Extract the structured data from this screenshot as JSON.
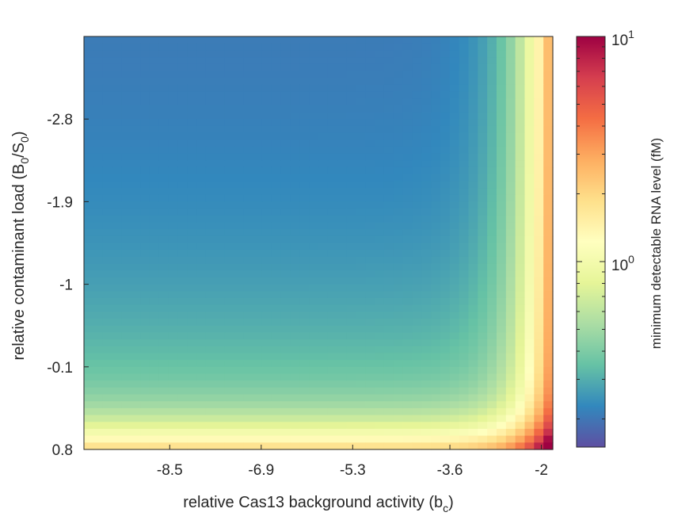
{
  "chart_data": {
    "type": "heatmap",
    "title": "",
    "xlabel": "relative Cas13 background activity (b",
    "xlabel_sub": "c",
    "xlabel_end": ")",
    "ylabel": "relative contaminant load (B",
    "ylabel_sub1": "0",
    "ylabel_mid": "/S",
    "ylabel_sub2": "0",
    "ylabel_end": ")",
    "xlim": [
      -10,
      -1.8
    ],
    "ylim": [
      -3.7,
      0.8
    ],
    "y_reversed": true,
    "x_ticks": [
      -8.5,
      -6.9,
      -5.3,
      -3.6,
      -2
    ],
    "x_tick_labels": [
      "-8.5",
      "-6.9",
      "-5.3",
      "-3.6",
      "-2"
    ],
    "y_ticks": [
      -2.8,
      -1.9,
      -1,
      -0.1,
      0.8
    ],
    "y_tick_labels": [
      "-2.8",
      "-1.9",
      "-1",
      "-0.1",
      "0.8"
    ],
    "grid_columns": 50,
    "grid_rows": 60,
    "value_model": "min_detectable = 0.2 * (1 + 5*(10^(b_c+1.7))^1.2 + 1.5*(10^(B0/S0-0.8))^0.35) * (1 + 10^(b_c+2.2)) * (1 + 3.2*10^(2.3*(B0/S0-0.8)))",
    "colorbar": {
      "label": "minimum detectable RNA level (fM)",
      "scale": "log",
      "clim": [
        0.15,
        10
      ],
      "ticks": [
        1,
        10
      ],
      "tick_base": "10",
      "tick_exponents": [
        "0",
        "1"
      ],
      "colormap": "spectral-reversed"
    }
  }
}
